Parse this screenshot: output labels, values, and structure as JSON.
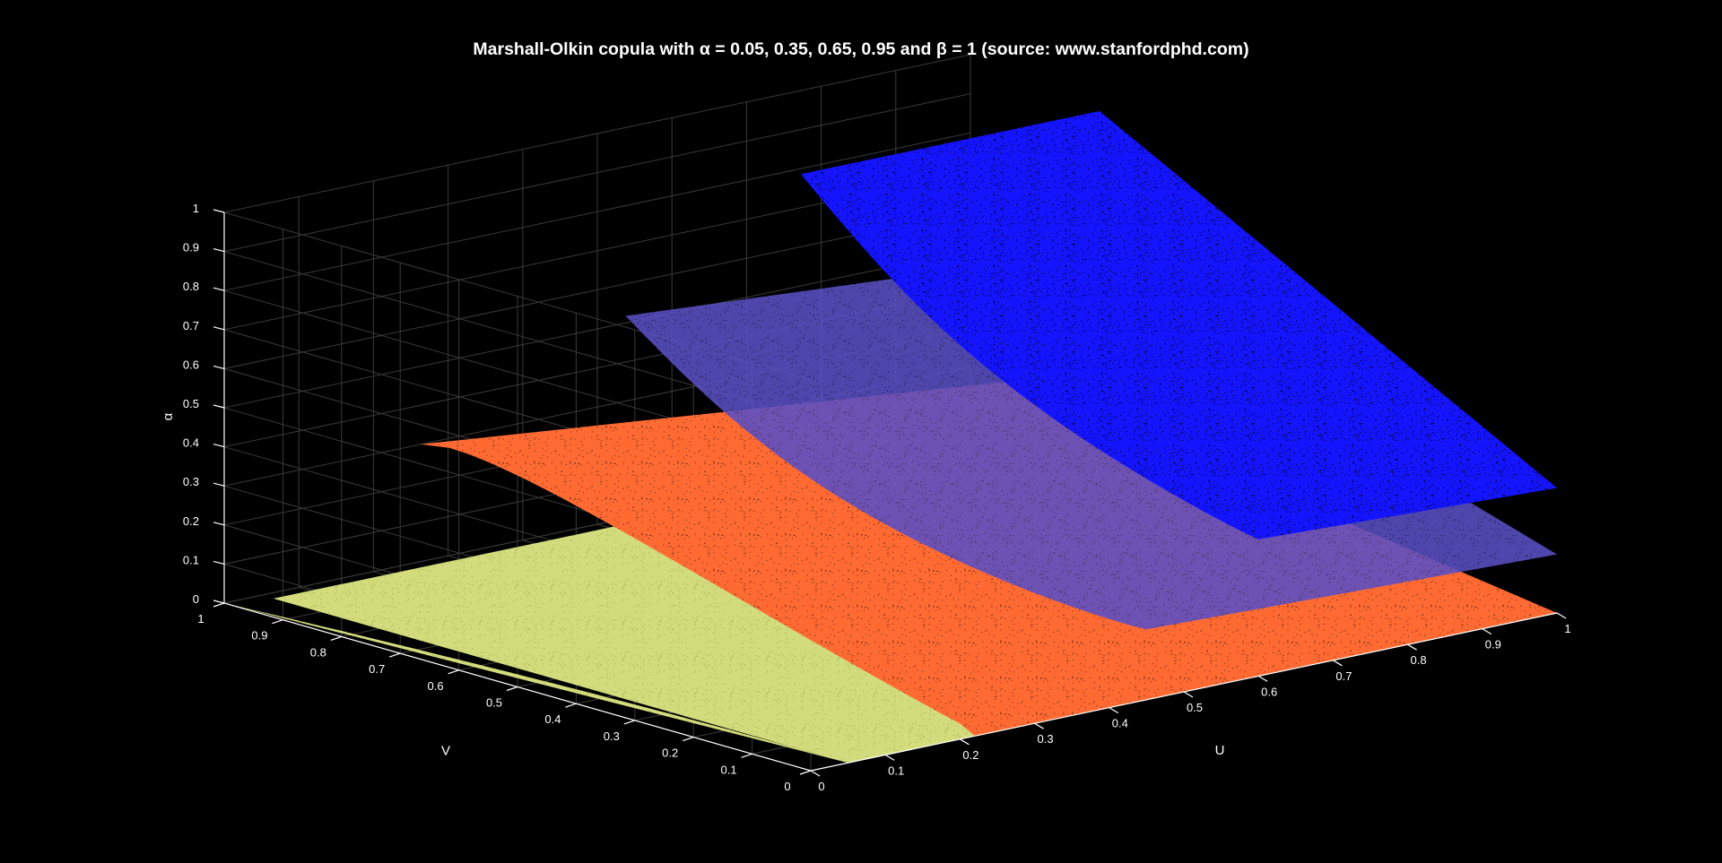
{
  "chart_data": {
    "type": "scatter3d",
    "title": "Marshall-Olkin copula with α = 0.05, 0.35, 0.65, 0.95 and β = 1 (source: www.stanfordphd.com)",
    "xlabel": "U",
    "ylabel": "V",
    "zlabel": "α",
    "xlim": [
      0,
      1
    ],
    "ylim": [
      0,
      1
    ],
    "zlim": [
      0,
      1
    ],
    "x_ticks": [
      "0",
      "0.1",
      "0.2",
      "0.3",
      "0.4",
      "0.5",
      "0.6",
      "0.7",
      "0.8",
      "0.9",
      "1"
    ],
    "y_ticks": [
      "0",
      "0.1",
      "0.2",
      "0.3",
      "0.4",
      "0.5",
      "0.6",
      "0.7",
      "0.8",
      "0.9",
      "1"
    ],
    "z_ticks": [
      "0",
      "0.1",
      "0.2",
      "0.3",
      "0.4",
      "0.5",
      "0.6",
      "0.7",
      "0.8",
      "0.9",
      "1"
    ],
    "grid": true,
    "background": "#000000",
    "series": [
      {
        "alpha": 0.05,
        "beta": 1,
        "color": "#d3dc7c",
        "z_level": 0.0
      },
      {
        "alpha": 0.35,
        "beta": 1,
        "color": "#ff6a33",
        "z_level": 0.2
      },
      {
        "alpha": 0.65,
        "beta": 1,
        "color": "#5a4fc4",
        "z_level": 0.5
      },
      {
        "alpha": 0.95,
        "beta": 1,
        "color": "#1414ff",
        "z_level": 0.8
      }
    ]
  }
}
